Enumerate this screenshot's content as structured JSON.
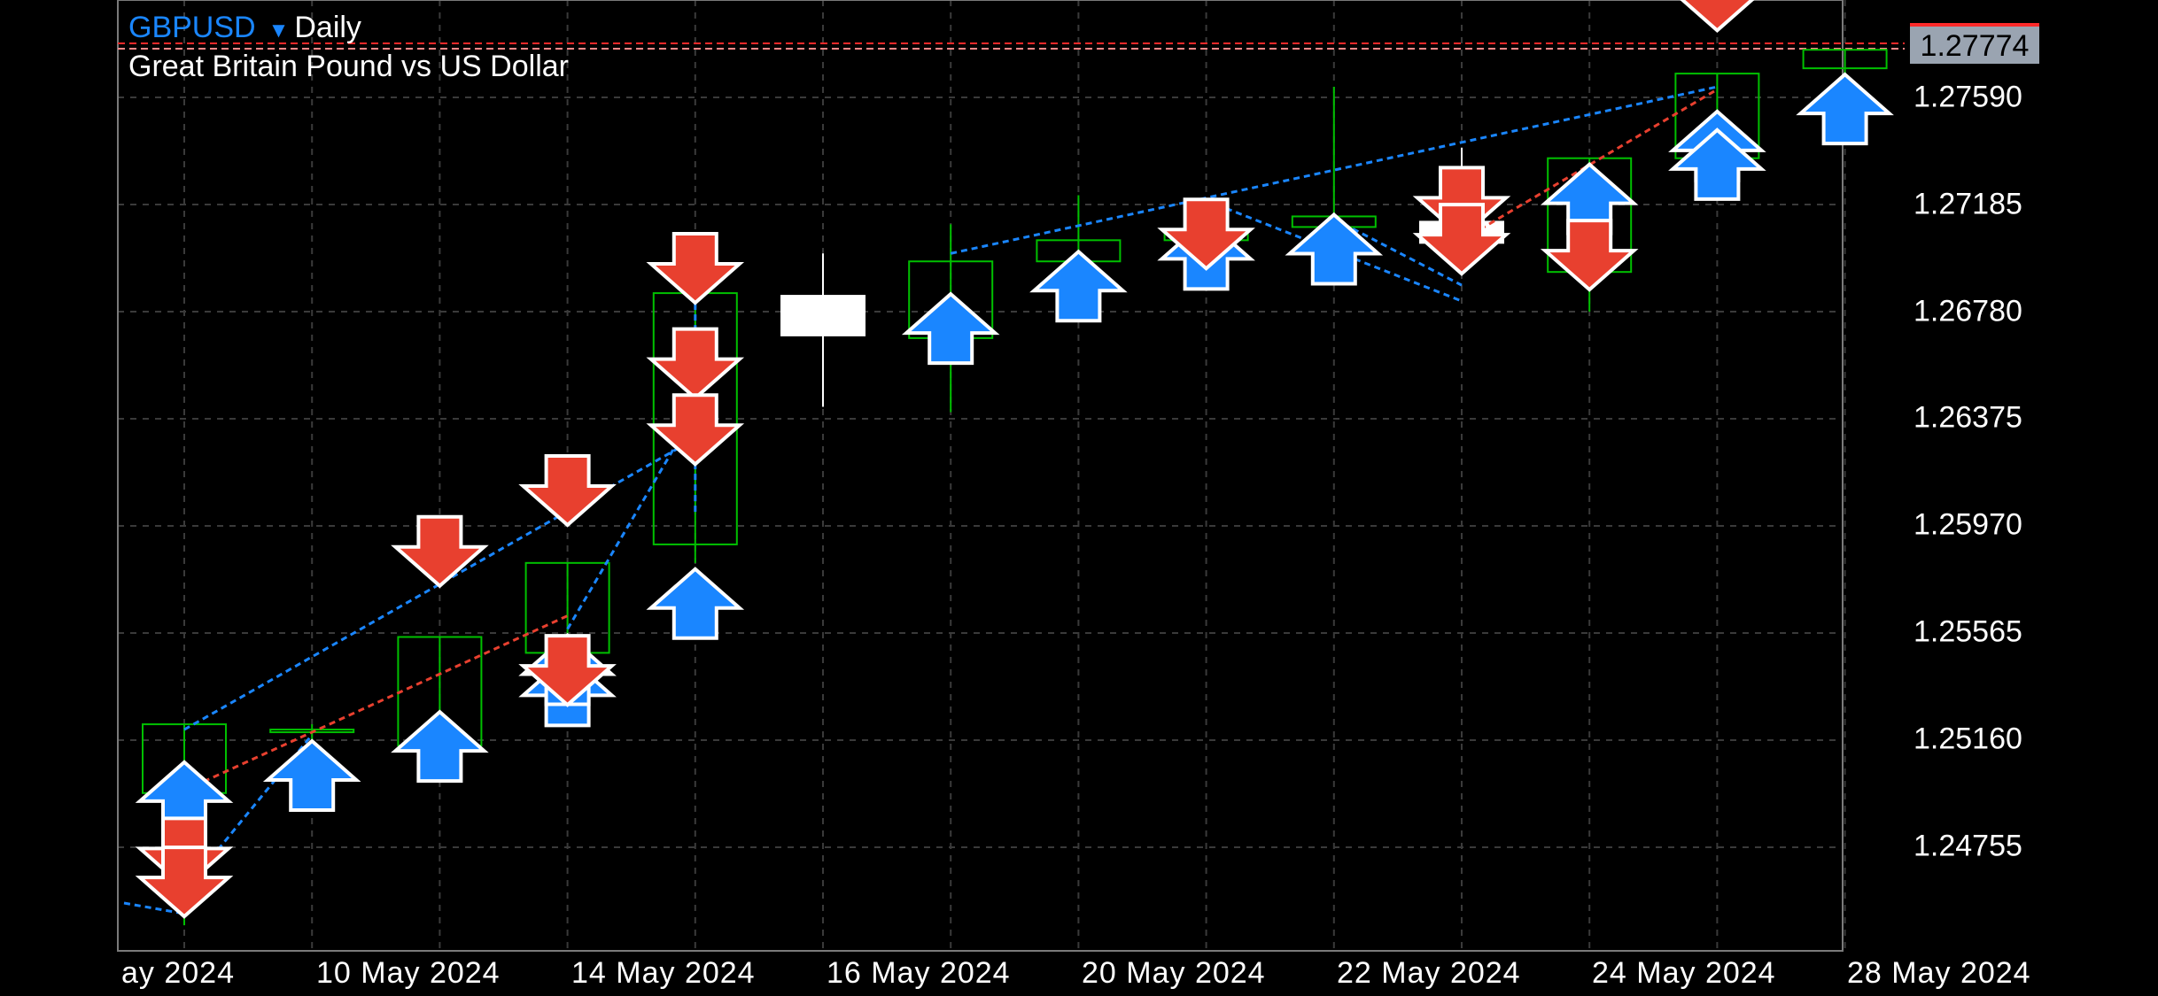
{
  "header": {
    "symbol": "GBPUSD",
    "timeframe_icon": "triangle-down-icon",
    "timeframe": "Daily",
    "description": "Great Britain Pound vs US Dollar"
  },
  "current_price": "1.27774",
  "colors": {
    "background": "#000000",
    "bull_candle": "#00c000",
    "bear_candle": "#ffffff",
    "buy_arrow": "#1a86ff",
    "sell_arrow": "#e8402f",
    "grid": "#3a3a3a",
    "price_line": "#ff2a2a"
  },
  "chart_data": {
    "type": "candlestick",
    "instrument": "GBPUSD",
    "y_ticks": [
      "1.27590",
      "1.27185",
      "1.26780",
      "1.26375",
      "1.25970",
      "1.25565",
      "1.25160",
      "1.24755"
    ],
    "ylim": [
      1.2441,
      1.281
    ],
    "x_tick_labels": [
      "ay 2024",
      "10 May 2024",
      "14 May 2024",
      "16 May 2024",
      "20 May 2024",
      "22 May 2024",
      "24 May 2024",
      "28 May 2024"
    ],
    "candles": [
      {
        "open": 1.2496,
        "high": 1.2522,
        "low": 1.2446,
        "close": 1.2522
      },
      {
        "open": 1.2519,
        "high": 1.2522,
        "low": 1.2509,
        "close": 1.252
      },
      {
        "open": 1.2514,
        "high": 1.2555,
        "low": 1.2512,
        "close": 1.2555
      },
      {
        "open": 1.2549,
        "high": 1.2583,
        "low": 1.2543,
        "close": 1.2583
      },
      {
        "open": 1.259,
        "high": 1.2685,
        "low": 1.2583,
        "close": 1.2685
      },
      {
        "open": 1.2684,
        "high": 1.27,
        "low": 1.2642,
        "close": 1.2669
      },
      {
        "open": 1.2668,
        "high": 1.2711,
        "low": 1.264,
        "close": 1.2697
      },
      {
        "open": 1.2697,
        "high": 1.2722,
        "low": 1.2691,
        "close": 1.2705
      },
      {
        "open": 1.2705,
        "high": 1.2718,
        "low": 1.269,
        "close": 1.2708
      },
      {
        "open": 1.271,
        "high": 1.2763,
        "low": 1.2698,
        "close": 1.2714
      },
      {
        "open": 1.2712,
        "high": 1.274,
        "low": 1.27,
        "close": 1.2704
      },
      {
        "open": 1.2693,
        "high": 1.2736,
        "low": 1.2678,
        "close": 1.2736
      },
      {
        "open": 1.2736,
        "high": 1.2768,
        "low": 1.2732,
        "close": 1.2768
      },
      {
        "open": 1.277,
        "high": 1.2777,
        "low": 1.2767,
        "close": 1.2777
      }
    ],
    "trade_arrows": [
      {
        "candle": 0,
        "side": "buy",
        "price": 1.2507
      },
      {
        "candle": 0,
        "side": "sell",
        "price": 1.2461
      },
      {
        "candle": 0,
        "side": "sell",
        "price": 1.245
      },
      {
        "candle": 1,
        "side": "buy",
        "price": 1.2515
      },
      {
        "candle": 2,
        "side": "buy",
        "price": 1.2526
      },
      {
        "candle": 2,
        "side": "sell",
        "price": 1.2575
      },
      {
        "candle": 3,
        "side": "sell",
        "price": 1.2598
      },
      {
        "candle": 3,
        "side": "buy",
        "price": 1.2547
      },
      {
        "candle": 3,
        "side": "buy",
        "price": 1.2555
      },
      {
        "candle": 3,
        "side": "sell",
        "price": 1.253
      },
      {
        "candle": 4,
        "side": "sell",
        "price": 1.2682
      },
      {
        "candle": 4,
        "side": "sell",
        "price": 1.2646
      },
      {
        "candle": 4,
        "side": "sell",
        "price": 1.2621
      },
      {
        "candle": 4,
        "side": "buy",
        "price": 1.258
      },
      {
        "candle": 6,
        "side": "buy",
        "price": 1.2684
      },
      {
        "candle": 7,
        "side": "buy",
        "price": 1.27
      },
      {
        "candle": 8,
        "side": "buy",
        "price": 1.2712
      },
      {
        "candle": 8,
        "side": "sell",
        "price": 1.2695
      },
      {
        "candle": 9,
        "side": "buy",
        "price": 1.2714
      },
      {
        "candle": 10,
        "side": "sell",
        "price": 1.2707
      },
      {
        "candle": 10,
        "side": "sell",
        "price": 1.2693
      },
      {
        "candle": 11,
        "side": "buy",
        "price": 1.2733
      },
      {
        "candle": 11,
        "side": "sell",
        "price": 1.2687
      },
      {
        "candle": 12,
        "side": "sell",
        "price": 1.2785
      },
      {
        "candle": 12,
        "side": "buy",
        "price": 1.2753
      },
      {
        "candle": 12,
        "side": "buy",
        "price": 1.2746
      },
      {
        "candle": 13,
        "side": "buy",
        "price": 1.2767
      }
    ],
    "trade_lines": [
      {
        "color": "blue",
        "from": [
          0,
          1.2459
        ],
        "to": [
          1,
          1.2518
        ]
      },
      {
        "color": "red",
        "from": [
          0,
          1.2497
        ],
        "to": [
          3,
          1.2563
        ]
      },
      {
        "color": "blue",
        "from": [
          0,
          1.252
        ],
        "to": [
          4,
          1.263
        ]
      },
      {
        "color": "blue",
        "from": [
          3,
          1.2558
        ],
        "to": [
          4,
          1.264
        ]
      },
      {
        "color": "blue",
        "from": [
          4,
          1.2685
        ],
        "to": [
          4,
          1.2602
        ]
      },
      {
        "color": "blue",
        "from": [
          6,
          1.27
        ],
        "to": [
          12,
          1.2763
        ]
      },
      {
        "color": "blue",
        "from": [
          8,
          1.272
        ],
        "to": [
          10,
          1.2682
        ]
      },
      {
        "color": "blue",
        "from": [
          9,
          1.2713
        ],
        "to": [
          10,
          1.2688
        ]
      },
      {
        "color": "red",
        "from": [
          10,
          1.2705
        ],
        "to": [
          12,
          1.2762
        ]
      }
    ]
  }
}
